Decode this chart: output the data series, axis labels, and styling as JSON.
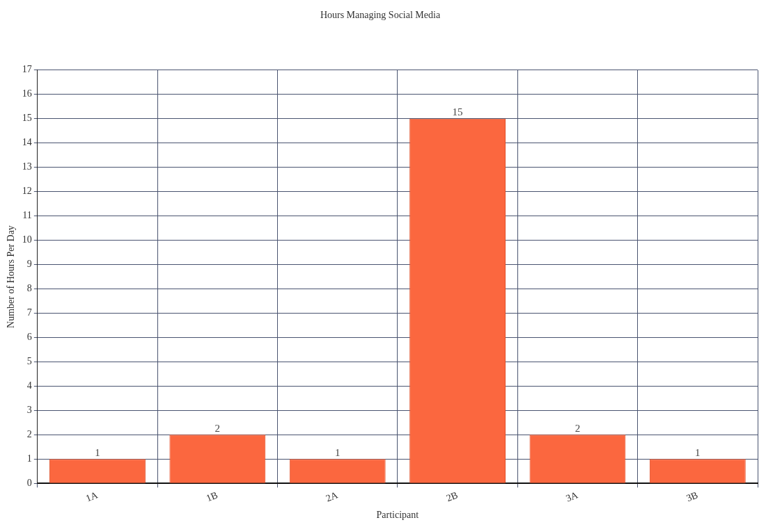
{
  "chart_data": {
    "type": "bar",
    "title": "Hours Managing Social Media",
    "xlabel": "Participant",
    "ylabel": "Number of Hours Per Day",
    "categories": [
      "1A",
      "1B",
      "2A",
      "2B",
      "3A",
      "3B"
    ],
    "values": [
      1,
      2,
      1,
      15,
      2,
      1
    ],
    "color": "#fb673f",
    "ylim": [
      0,
      17
    ],
    "yticks": [
      0,
      1,
      2,
      3,
      4,
      5,
      6,
      7,
      8,
      9,
      10,
      11,
      12,
      13,
      14,
      15,
      16,
      17
    ],
    "grid": true,
    "data_labels": true
  }
}
